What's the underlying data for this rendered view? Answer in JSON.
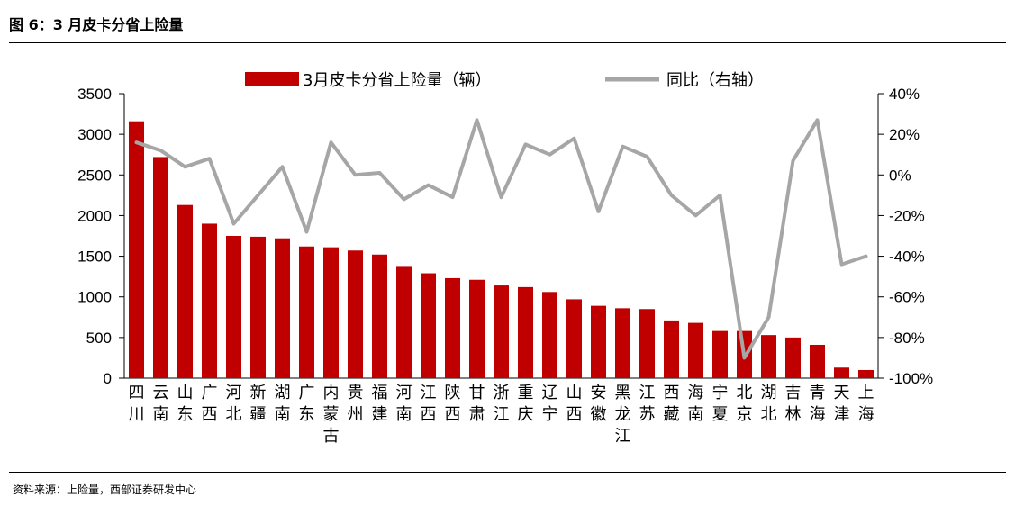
{
  "figure": {
    "title": "图 6：3 月皮卡分省上险量",
    "source": "资料来源：上险量，西部证券研发中心"
  },
  "colors": {
    "bar": "#c00000",
    "line": "#a6a6a6",
    "axis": "#000000"
  },
  "chart_data": {
    "type": "bar",
    "title": "",
    "legend_position": "top",
    "categories": [
      "四川",
      "云南",
      "山东",
      "广西",
      "河北",
      "新疆",
      "湖南",
      "广东",
      "内蒙古",
      "贵州",
      "福建",
      "河南",
      "江西",
      "陕西",
      "甘肃",
      "浙江",
      "重庆",
      "辽宁",
      "山西",
      "安徽",
      "黑龙江",
      "江苏",
      "西藏",
      "海南",
      "宁夏",
      "北京",
      "湖北",
      "吉林",
      "青海",
      "天津",
      "上海"
    ],
    "series": [
      {
        "name": "3月皮卡分省上险量（辆）",
        "type": "bar",
        "axis": "left",
        "values": [
          3160,
          2720,
          2130,
          1900,
          1750,
          1740,
          1720,
          1620,
          1610,
          1570,
          1520,
          1380,
          1290,
          1230,
          1210,
          1140,
          1120,
          1060,
          970,
          890,
          860,
          850,
          710,
          680,
          580,
          580,
          530,
          500,
          410,
          130,
          100
        ]
      },
      {
        "name": "同比（右轴）",
        "type": "line",
        "axis": "right",
        "values": [
          16,
          12,
          4,
          8,
          -24,
          -10,
          4,
          -28,
          16,
          0,
          1,
          -12,
          -5,
          -11,
          27,
          -11,
          15,
          10,
          18,
          -18,
          14,
          9,
          -10,
          -20,
          -10,
          -90,
          -70,
          7,
          27,
          -44,
          -40
        ]
      }
    ],
    "y_left": {
      "min": 0,
      "max": 3500,
      "step": 500
    },
    "y_right": {
      "min": -100,
      "max": 40,
      "step": 20,
      "unit": "%"
    },
    "grid": false
  }
}
